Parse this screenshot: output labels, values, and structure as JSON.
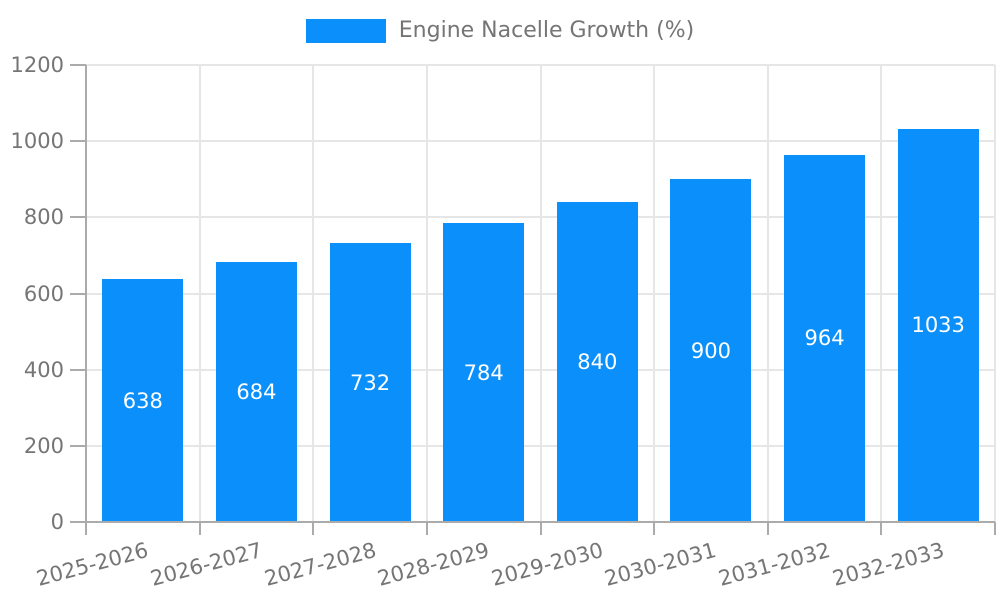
{
  "legend": {
    "label": "Engine Nacelle Growth (%)",
    "swatch_color": "#0b90fb"
  },
  "chart_data": {
    "type": "bar",
    "title": "Engine Nacelle Growth (%)",
    "categories": [
      "2025-2026",
      "2026-2027",
      "2027-2028",
      "2028-2029",
      "2029-2030",
      "2030-2031",
      "2031-2032",
      "2032-2033"
    ],
    "values": [
      638,
      684,
      732,
      784,
      840,
      900,
      964,
      1033
    ],
    "xlabel": "",
    "ylabel": "",
    "ylim": [
      0,
      1200
    ],
    "yticks": [
      0,
      200,
      400,
      600,
      800,
      1000,
      1200
    ],
    "grid": true,
    "legend_position": "top-center",
    "value_labels": "inside-center",
    "x_label_rotation_deg": -15,
    "colors": {
      "bar": "#0b90fb",
      "grid": "#e6e6e6",
      "axis": "#ababab",
      "tick_text": "#757575",
      "value_text": "#ffffff",
      "background": "#ffffff"
    }
  }
}
